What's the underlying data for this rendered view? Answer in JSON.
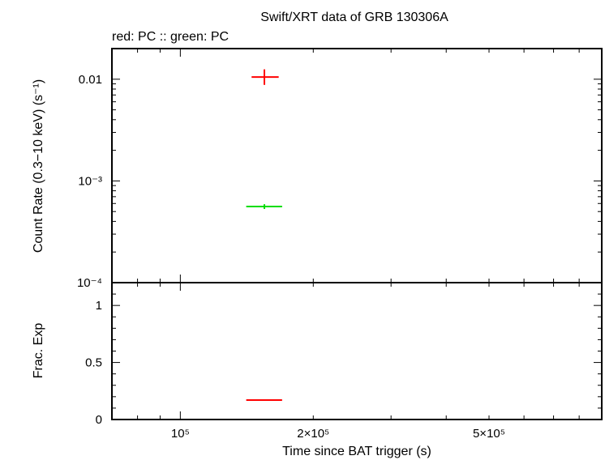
{
  "chart_data": [
    {
      "type": "scatter",
      "title": "Swift/XRT data of GRB 130306A",
      "subtitle": "red: PC  :: green: PC",
      "ylabel": "Count Rate (0.3−10 keV) (s⁻¹)",
      "yscale": "log",
      "xscale": "log",
      "xlim": [
        70000,
        900000
      ],
      "ylim": [
        0.0001,
        0.02
      ],
      "yticks": [
        {
          "value": 0.01,
          "label": "0.01"
        },
        {
          "value": 0.001,
          "label": "10⁻³"
        },
        {
          "value": 0.0001,
          "label": "10⁻⁴"
        }
      ],
      "series": [
        {
          "color": "#ff0000",
          "points": [
            {
              "x": 155000,
              "xlo": 145000,
              "xhi": 167000,
              "y": 0.0105,
              "ylo": 0.0088,
              "yhi": 0.0125
            }
          ]
        },
        {
          "color": "#00dd00",
          "points": [
            {
              "x": 155000,
              "xlo": 141000,
              "xhi": 170000,
              "y": 0.00056,
              "ylo": 0.00053,
              "yhi": 0.00059
            }
          ]
        }
      ],
      "grid": false
    },
    {
      "type": "scatter",
      "ylabel": "Frac. Exp",
      "xlabel": "Time since BAT trigger (s)",
      "xscale": "log",
      "xlim": [
        70000,
        900000
      ],
      "ylim": [
        0,
        1.2
      ],
      "yticks": [
        {
          "value": 0,
          "label": "0"
        },
        {
          "value": 0.5,
          "label": "0.5"
        },
        {
          "value": 1,
          "label": "1"
        }
      ],
      "xticks": [
        {
          "value": 100000,
          "label": "10⁵"
        },
        {
          "value": 200000,
          "label": "2×10⁵"
        },
        {
          "value": 500000,
          "label": "5×10⁵"
        }
      ],
      "series": [
        {
          "color": "#ff0000",
          "points": [
            {
              "x": 155000,
              "xlo": 141000,
              "xhi": 170000,
              "y": 0.17
            }
          ]
        }
      ],
      "grid": false
    }
  ]
}
